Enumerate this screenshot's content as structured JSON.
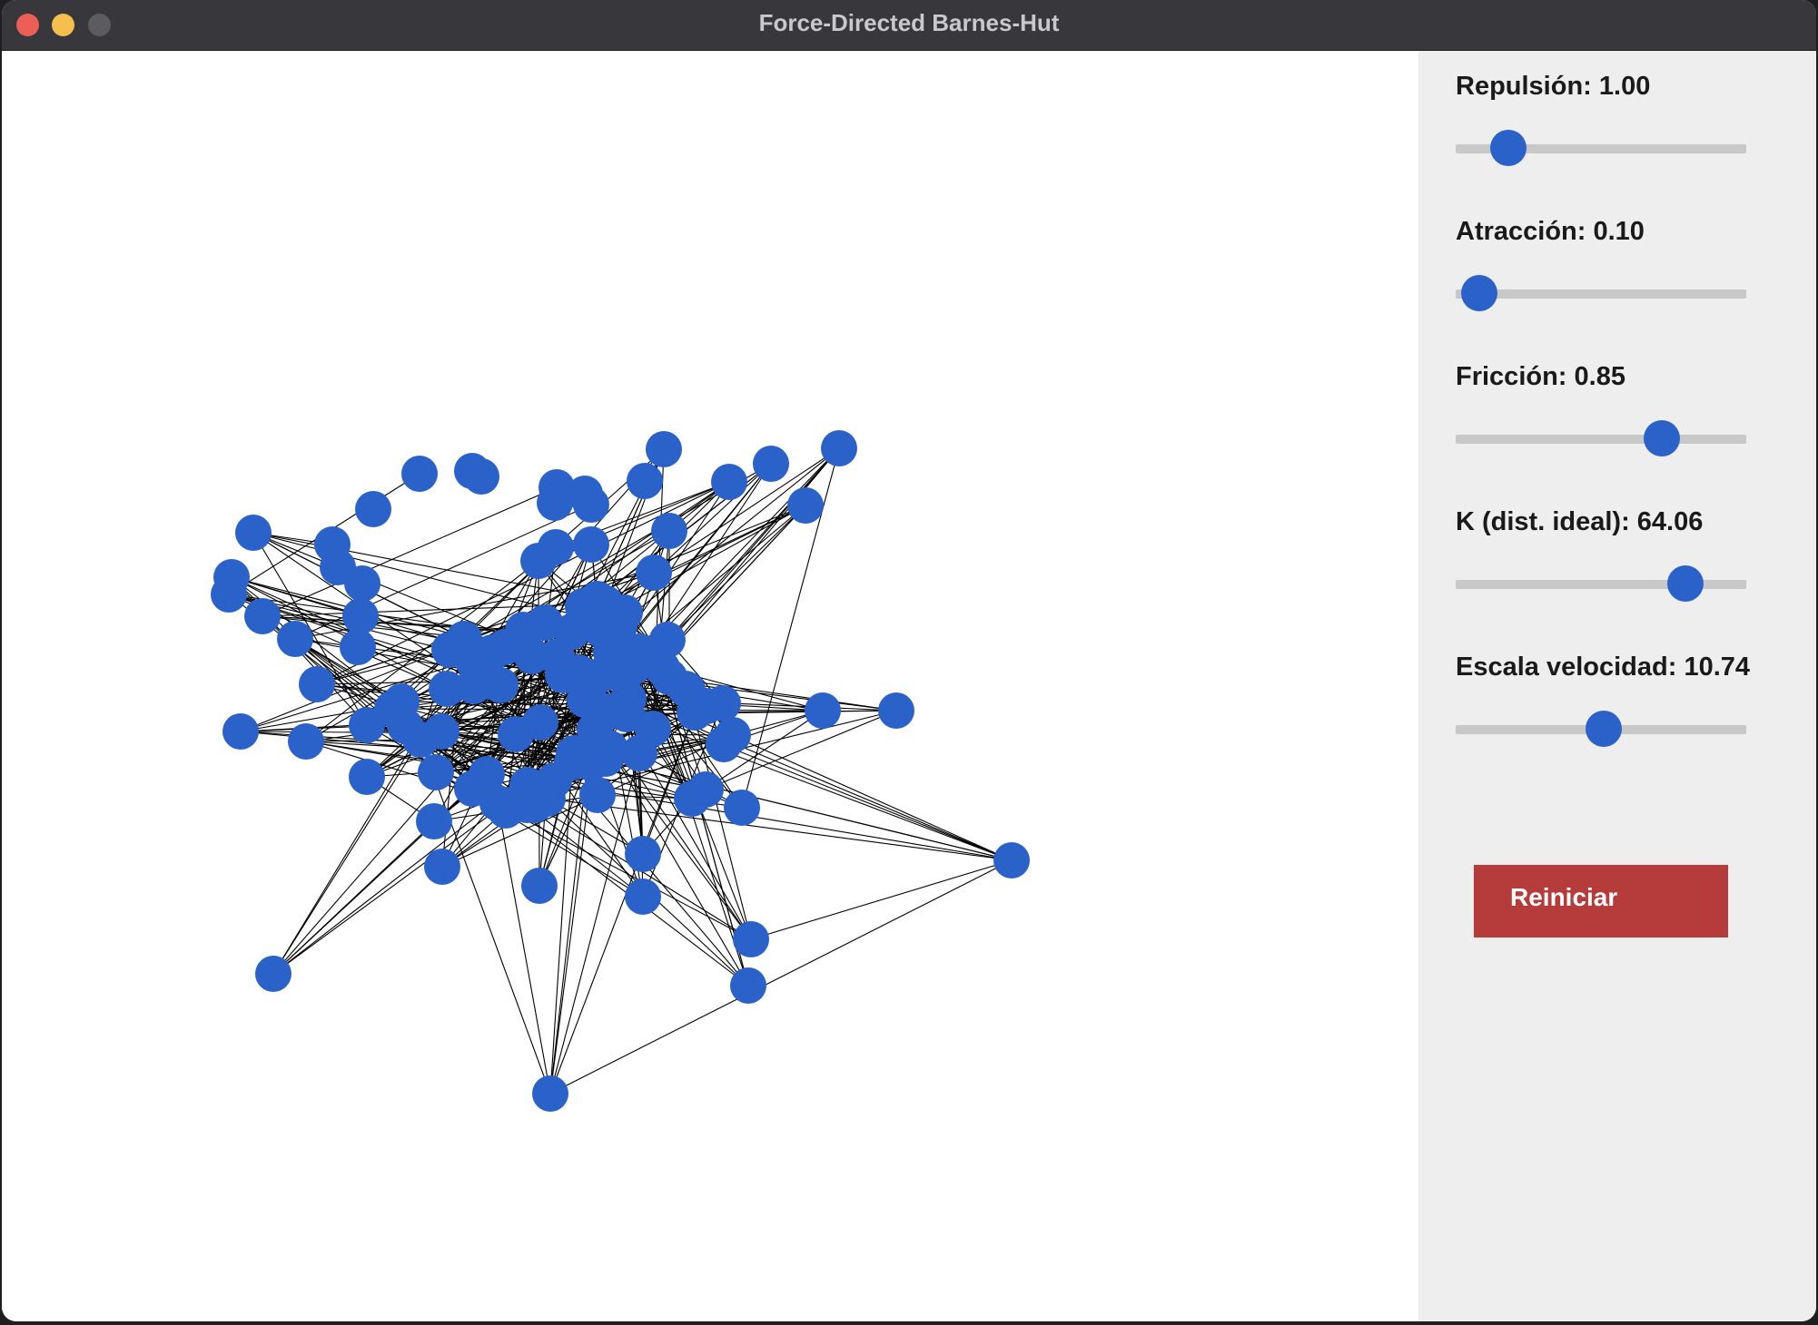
{
  "window": {
    "title": "Force-Directed Barnes-Hut"
  },
  "controls": [
    {
      "id": "repulsion",
      "label": "Repulsión: 1.00",
      "level": 0.18
    },
    {
      "id": "attraction",
      "label": "Atracción: 0.10",
      "level": 0.08
    },
    {
      "id": "friction",
      "label": "Fricción: 0.85",
      "level": 0.71
    },
    {
      "id": "k-ideal",
      "label": "K (dist. ideal): 64.06",
      "level": 0.79
    },
    {
      "id": "velocity-scale",
      "label": "Escala velocidad: 10.74",
      "level": 0.51
    }
  ],
  "reset_button": {
    "label": "Reiniciar"
  },
  "colors": {
    "node": "#2a62c9",
    "edge": "#000000",
    "reset_button": "#b53c3b",
    "panel_background": "#eeeeee",
    "slider_track": "#c8c8c8"
  }
}
